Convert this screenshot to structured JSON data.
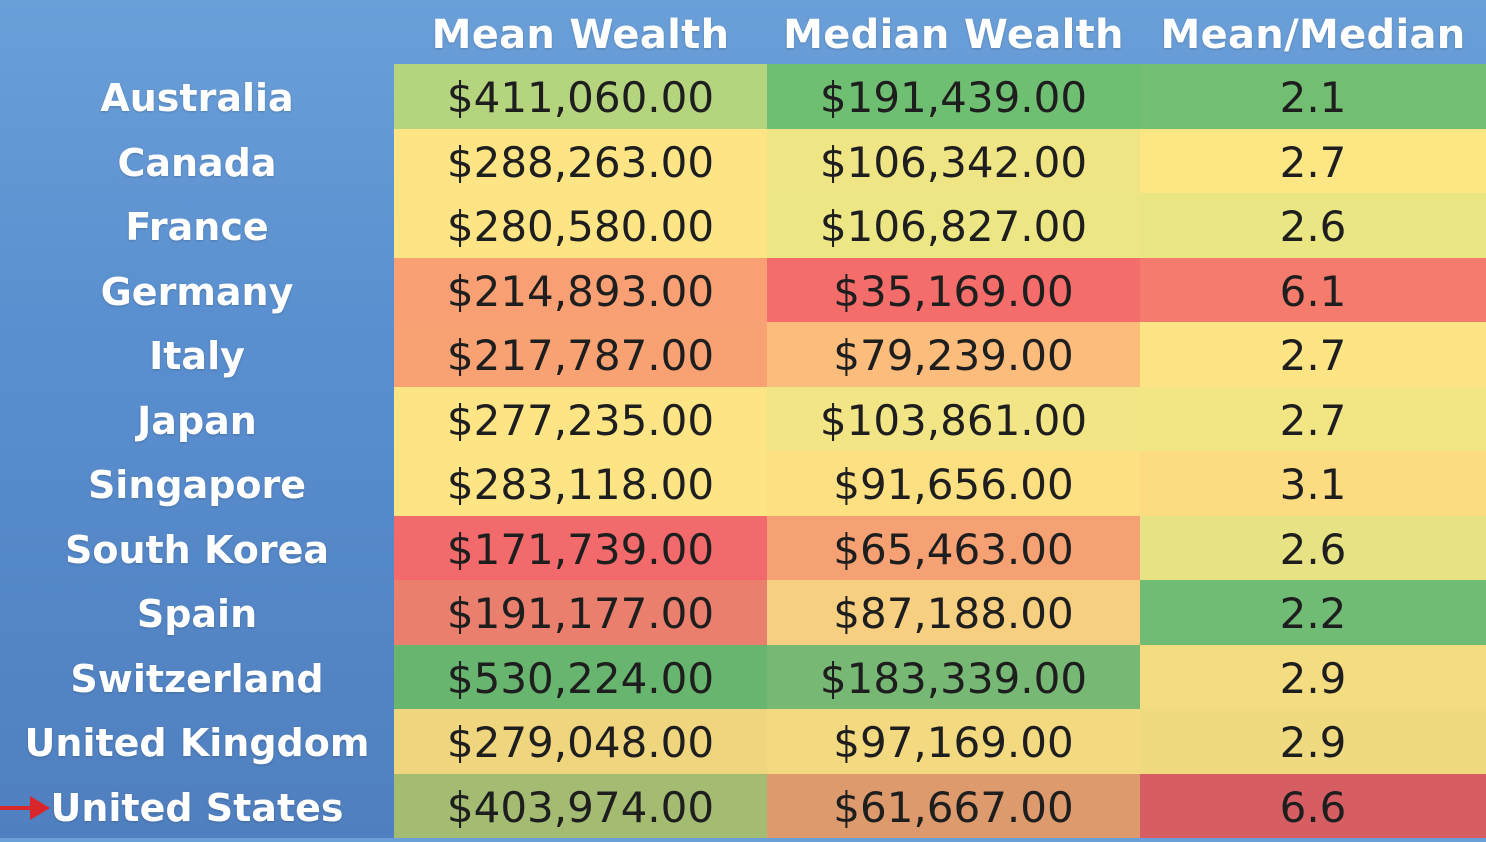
{
  "chart_data": {
    "type": "table",
    "columns": [
      "",
      "Mean Wealth",
      "Median Wealth",
      "Mean/Median"
    ],
    "rows": [
      {
        "country": "Australia",
        "mean": "$411,060.00",
        "median": "$191,439.00",
        "ratio": "2.1",
        "colors": [
          "#b5d47e",
          "#6fbf73",
          "#72bf73"
        ]
      },
      {
        "country": "Canada",
        "mean": "$288,263.00",
        "median": "$106,342.00",
        "ratio": "2.7",
        "colors": [
          "#fde585",
          "#f0e585",
          "#fce784"
        ]
      },
      {
        "country": "France",
        "mean": "$280,580.00",
        "median": "$106,827.00",
        "ratio": "2.6",
        "colors": [
          "#fde585",
          "#ece685",
          "#e9e683"
        ]
      },
      {
        "country": "Germany",
        "mean": "$214,893.00",
        "median": "$35,169.00",
        "ratio": "6.1",
        "colors": [
          "#f8a074",
          "#f56d6b",
          "#f57c6d"
        ]
      },
      {
        "country": "Italy",
        "mean": "$217,787.00",
        "median": "$79,239.00",
        "ratio": "2.7",
        "colors": [
          "#f8a273",
          "#fbbc7c",
          "#fde585"
        ]
      },
      {
        "country": "Japan",
        "mean": "$277,235.00",
        "median": "$103,861.00",
        "ratio": "2.7",
        "colors": [
          "#fde585",
          "#f2e585",
          "#f2e584"
        ]
      },
      {
        "country": "Singapore",
        "mean": "$283,118.00",
        "median": "$91,656.00",
        "ratio": "3.1",
        "colors": [
          "#fde585",
          "#fde082",
          "#fddb80"
        ]
      },
      {
        "country": "South Korea",
        "mean": "$171,739.00",
        "median": "$65,463.00",
        "ratio": "2.6",
        "colors": [
          "#f26a6b",
          "#f5a173",
          "#e7e284"
        ]
      },
      {
        "country": "Spain",
        "mean": "$191,177.00",
        "median": "$87,188.00",
        "ratio": "2.2",
        "colors": [
          "#ea7f6e",
          "#f7cf80",
          "#71bc75"
        ]
      },
      {
        "country": "Switzerland",
        "mean": "$530,224.00",
        "median": "$183,339.00",
        "ratio": "2.9",
        "colors": [
          "#68b570",
          "#76b874",
          "#f4dc80"
        ]
      },
      {
        "country": "United Kingdom",
        "mean": "$279,048.00",
        "median": "$97,169.00",
        "ratio": "2.9",
        "colors": [
          "#f0d57f",
          "#f3d980",
          "#efda80"
        ]
      },
      {
        "country": "United States",
        "mean": "$403,974.00",
        "median": "$61,667.00",
        "ratio": "6.6",
        "colors": [
          "#a4bb72",
          "#dd9a6d",
          "#d65e63"
        ]
      }
    ],
    "highlight_row": "United States",
    "arrow_color": "#d9262b"
  }
}
